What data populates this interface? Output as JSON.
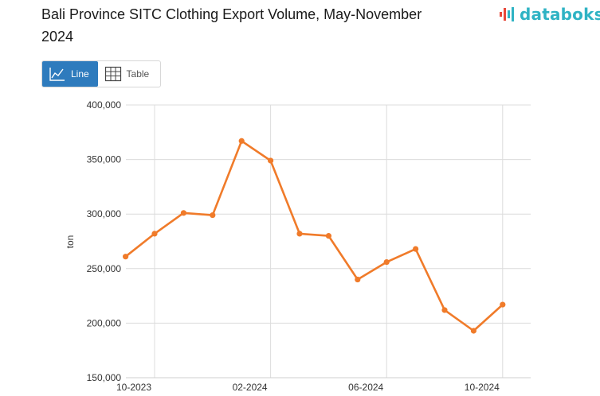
{
  "header": {
    "title": "Bali Province SITC Clothing Export Volume, May-November 2024",
    "brand": "databoks",
    "brand_accent": "#e8483a",
    "brand_color": "#2fb3c4"
  },
  "view_toggle": {
    "line_label": "Line",
    "table_label": "Table",
    "active": "line",
    "active_color": "#2e7bbd"
  },
  "chart_data": {
    "type": "line",
    "ylabel": "ton",
    "ylim": [
      150000,
      400000
    ],
    "yticks": [
      150000,
      200000,
      250000,
      300000,
      350000,
      400000
    ],
    "ytick_labels": [
      "150,000",
      "200,000",
      "250,000",
      "300,000",
      "350,000",
      "400,000"
    ],
    "x": [
      "2023-09",
      "2023-10",
      "2023-11",
      "2023-12",
      "2024-01",
      "2024-02",
      "2024-03",
      "2024-04",
      "2024-05",
      "2024-06",
      "2024-07",
      "2024-08",
      "2024-09",
      "2024-10"
    ],
    "xticks": [
      "10-2023",
      "02-2024",
      "06-2024",
      "10-2024"
    ],
    "grid": true,
    "series": [
      {
        "color": "#f07b2a",
        "values": [
          261000,
          282000,
          301000,
          299000,
          367000,
          349000,
          282000,
          280000,
          240000,
          256000,
          268000,
          212000,
          193000,
          217000
        ]
      }
    ]
  }
}
